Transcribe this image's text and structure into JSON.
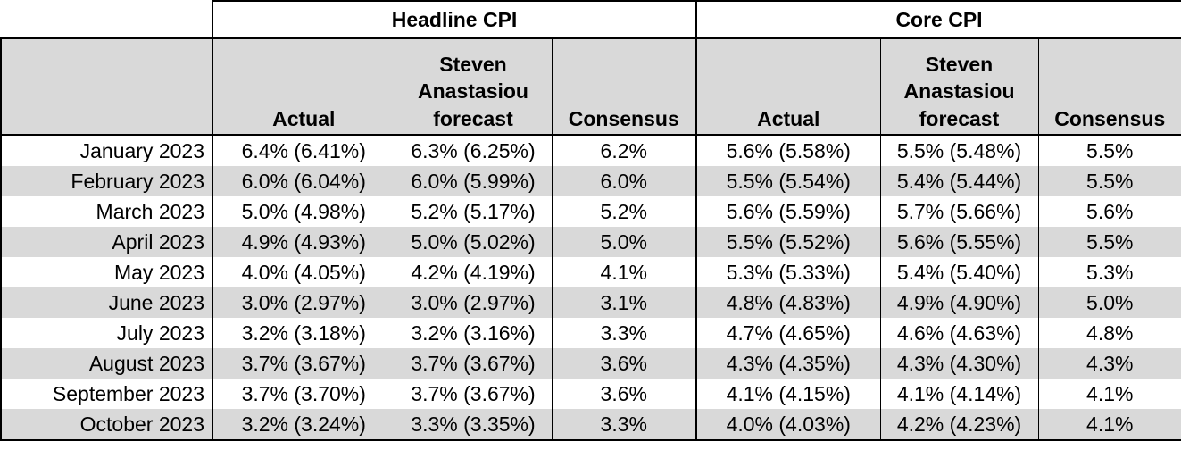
{
  "groups": {
    "headline": "Headline CPI",
    "core": "Core CPI"
  },
  "columns": {
    "actual": "Actual",
    "forecast_line1": "Steven",
    "forecast_line2": "Anastasiou",
    "forecast_line3": "forecast",
    "consensus": "Consensus"
  },
  "rows": [
    {
      "month": "January 2023",
      "h_actual": "6.4% (6.41%)",
      "h_forecast": "6.3% (6.25%)",
      "h_consensus": "6.2%",
      "c_actual": "5.6% (5.58%)",
      "c_forecast": "5.5% (5.48%)",
      "c_consensus": "5.5%"
    },
    {
      "month": "February 2023",
      "h_actual": "6.0% (6.04%)",
      "h_forecast": "6.0% (5.99%)",
      "h_consensus": "6.0%",
      "c_actual": "5.5% (5.54%)",
      "c_forecast": "5.4% (5.44%)",
      "c_consensus": "5.5%"
    },
    {
      "month": "March 2023",
      "h_actual": "5.0% (4.98%)",
      "h_forecast": "5.2% (5.17%)",
      "h_consensus": "5.2%",
      "c_actual": "5.6% (5.59%)",
      "c_forecast": "5.7% (5.66%)",
      "c_consensus": "5.6%"
    },
    {
      "month": "April 2023",
      "h_actual": "4.9% (4.93%)",
      "h_forecast": "5.0% (5.02%)",
      "h_consensus": "5.0%",
      "c_actual": "5.5% (5.52%)",
      "c_forecast": "5.6% (5.55%)",
      "c_consensus": "5.5%"
    },
    {
      "month": "May 2023",
      "h_actual": "4.0% (4.05%)",
      "h_forecast": "4.2% (4.19%)",
      "h_consensus": "4.1%",
      "c_actual": "5.3% (5.33%)",
      "c_forecast": "5.4% (5.40%)",
      "c_consensus": "5.3%"
    },
    {
      "month": "June 2023",
      "h_actual": "3.0% (2.97%)",
      "h_forecast": "3.0% (2.97%)",
      "h_consensus": "3.1%",
      "c_actual": "4.8% (4.83%)",
      "c_forecast": "4.9% (4.90%)",
      "c_consensus": "5.0%"
    },
    {
      "month": "July 2023",
      "h_actual": "3.2% (3.18%)",
      "h_forecast": "3.2% (3.16%)",
      "h_consensus": "3.3%",
      "c_actual": "4.7% (4.65%)",
      "c_forecast": "4.6% (4.63%)",
      "c_consensus": "4.8%"
    },
    {
      "month": "August 2023",
      "h_actual": "3.7% (3.67%)",
      "h_forecast": "3.7% (3.67%)",
      "h_consensus": "3.6%",
      "c_actual": "4.3% (4.35%)",
      "c_forecast": "4.3% (4.30%)",
      "c_consensus": "4.3%"
    },
    {
      "month": "September 2023",
      "h_actual": "3.7% (3.70%)",
      "h_forecast": "3.7% (3.67%)",
      "h_consensus": "3.6%",
      "c_actual": "4.1% (4.15%)",
      "c_forecast": "4.1% (4.14%)",
      "c_consensus": "4.1%"
    },
    {
      "month": "October 2023",
      "h_actual": "3.2% (3.24%)",
      "h_forecast": "3.3% (3.35%)",
      "h_consensus": "3.3%",
      "c_actual": "4.0% (4.03%)",
      "c_forecast": "4.2% (4.23%)",
      "c_consensus": "4.1%"
    }
  ]
}
